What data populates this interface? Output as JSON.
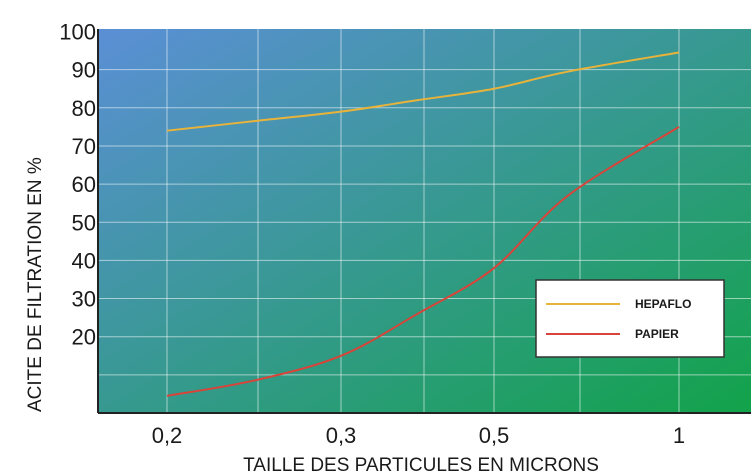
{
  "chart_data": {
    "type": "line",
    "title": "",
    "xlabel": "TAILLE DES PARTICULES EN MICRONS",
    "ylabel": "ACITE DE FILTRATION EN %",
    "x_ticks": [
      "0,2",
      "0,3",
      "0,5",
      "1"
    ],
    "y_ticks": [
      "100",
      "90",
      "80",
      "70",
      "60",
      "50",
      "40",
      "30",
      "20"
    ],
    "ylim": [
      0,
      100
    ],
    "grid": true,
    "legend_position": "bottom-right",
    "series": [
      {
        "name": "HEPAFLO",
        "color": "#e8b33a",
        "points": [
          [
            0.2,
            74
          ],
          [
            0.25,
            76.5
          ],
          [
            0.3,
            79
          ],
          [
            0.4,
            82
          ],
          [
            0.5,
            85
          ],
          [
            0.7,
            89.5
          ],
          [
            1.0,
            94.5
          ]
        ]
      },
      {
        "name": "PAPIER",
        "color": "#d9443a",
        "points": [
          [
            0.2,
            4.5
          ],
          [
            0.25,
            8.5
          ],
          [
            0.3,
            15
          ],
          [
            0.4,
            26
          ],
          [
            0.5,
            38
          ],
          [
            0.7,
            57
          ],
          [
            1.0,
            75
          ]
        ]
      }
    ],
    "background_gradient": [
      "#5b8fd6",
      "#12a34a"
    ]
  }
}
